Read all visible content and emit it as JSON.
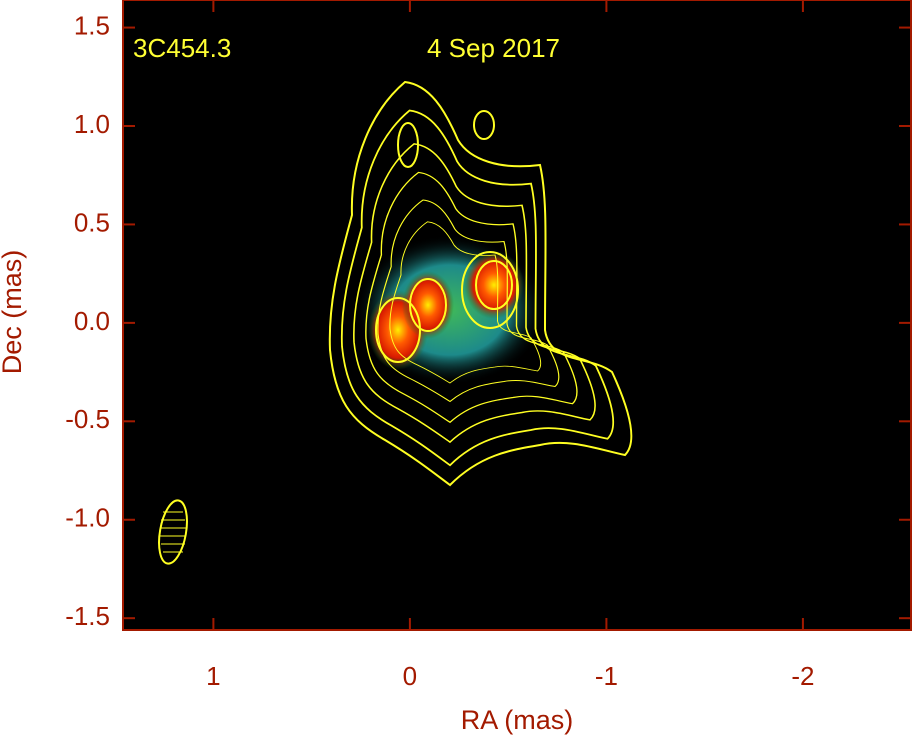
{
  "chart_data": {
    "type": "image",
    "title": "3C454.3",
    "subtitle": "4 Sep 2017",
    "x_label": "RA (mas)",
    "y_label": "Dec (mas)",
    "xlim": [
      1.46,
      -2.55
    ],
    "ylim": [
      -1.56,
      1.64
    ],
    "xticks": [
      1,
      0,
      -1,
      -2
    ],
    "yticks": [
      1.5,
      {
        "value": 1,
        "label": "1.0"
      },
      0.5,
      {
        "value": 0,
        "label": "0.0"
      },
      -0.5,
      {
        "value": -1,
        "label": "-1.0"
      },
      -1.5
    ],
    "color": "#a31a00"
  }
}
